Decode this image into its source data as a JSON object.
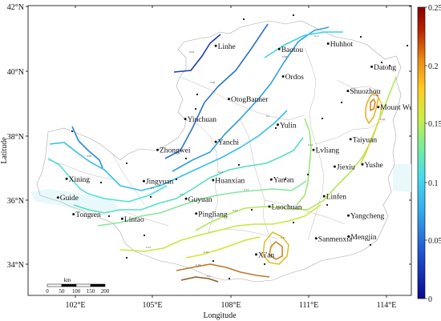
{
  "map": {
    "x_axis_title": "Longitude",
    "y_axis_title": "Latitude",
    "x_ticks": [
      "102°E",
      "105°E",
      "108°E",
      "111°E",
      "114°E"
    ],
    "y_ticks": [
      "42°N",
      "40°N",
      "38°N",
      "36°N",
      "34°N"
    ],
    "extent": {
      "lon": [
        100.3,
        114.8
      ],
      "lat": [
        33.0,
        42.0
      ]
    },
    "cities": [
      {
        "name": "Linhe",
        "lon": 107.4,
        "lat": 40.75
      },
      {
        "name": "Baotou",
        "lon": 109.8,
        "lat": 40.65
      },
      {
        "name": "Huhhot",
        "lon": 111.65,
        "lat": 40.82
      },
      {
        "name": "Datong",
        "lon": 113.3,
        "lat": 40.1
      },
      {
        "name": "OtogBanner",
        "lon": 107.9,
        "lat": 39.1
      },
      {
        "name": "Ordos",
        "lon": 109.95,
        "lat": 39.8
      },
      {
        "name": "Shuozhou",
        "lon": 112.4,
        "lat": 39.35
      },
      {
        "name": "Mount Wutai",
        "lon": 113.55,
        "lat": 38.85
      },
      {
        "name": "Yinchuan",
        "lon": 106.25,
        "lat": 38.48
      },
      {
        "name": "Yulin",
        "lon": 109.75,
        "lat": 38.3
      },
      {
        "name": "Taiyuan",
        "lon": 112.5,
        "lat": 37.85
      },
      {
        "name": "Zhongwei",
        "lon": 105.2,
        "lat": 37.52
      },
      {
        "name": "Yanchi",
        "lon": 107.4,
        "lat": 37.77
      },
      {
        "name": "Lvliang",
        "lon": 111.1,
        "lat": 37.52
      },
      {
        "name": "Yushe",
        "lon": 112.95,
        "lat": 37.07
      },
      {
        "name": "Xining",
        "lon": 101.76,
        "lat": 36.62
      },
      {
        "name": "Jingyuan",
        "lon": 104.68,
        "lat": 36.55
      },
      {
        "name": "Jiexiu",
        "lon": 111.9,
        "lat": 37.0
      },
      {
        "name": "Huanxian",
        "lon": 107.3,
        "lat": 36.58
      },
      {
        "name": "Yan'an",
        "lon": 109.5,
        "lat": 36.6
      },
      {
        "name": "Linfen",
        "lon": 111.5,
        "lat": 36.08
      },
      {
        "name": "Guide",
        "lon": 101.43,
        "lat": 36.04
      },
      {
        "name": "Guyuan",
        "lon": 106.28,
        "lat": 36.0
      },
      {
        "name": "Luochuan",
        "lon": 109.43,
        "lat": 35.76
      },
      {
        "name": "Tongren",
        "lon": 102.02,
        "lat": 35.52
      },
      {
        "name": "Pingliang",
        "lon": 106.66,
        "lat": 35.54
      },
      {
        "name": "Yangcheng",
        "lon": 112.42,
        "lat": 35.48
      },
      {
        "name": "Lintao",
        "lon": 103.86,
        "lat": 35.38
      },
      {
        "name": "Mengjin",
        "lon": 112.43,
        "lat": 34.83
      },
      {
        "name": "Sanmenxia",
        "lon": 111.2,
        "lat": 34.77
      },
      {
        "name": "Xi'an",
        "lon": 108.93,
        "lat": 34.27
      }
    ],
    "contour_values": [
      "0.04",
      "0.05",
      "0.06",
      "0.07",
      "0.08",
      "0.09",
      "0.1",
      "0.11",
      "0.12",
      "0.13",
      "0.14",
      "0.15",
      "0.16",
      "0.17",
      "0.18",
      "0.19",
      "0.2"
    ],
    "scale_bar": {
      "unit": "km",
      "labels": [
        "0",
        "50",
        "100",
        "150",
        "200"
      ]
    }
  },
  "colorbar": {
    "min": 0,
    "max": 0.25,
    "labels": [
      "0.25",
      "0.2",
      "0.15",
      "0.1",
      "0.05",
      "0"
    ],
    "stops": [
      "#0a0a8c",
      "#1e50d0",
      "#33aaee",
      "#44ddee",
      "#77ee99",
      "#ccee44",
      "#ffcc22",
      "#ee8811",
      "#bb2200",
      "#8b0000"
    ]
  }
}
